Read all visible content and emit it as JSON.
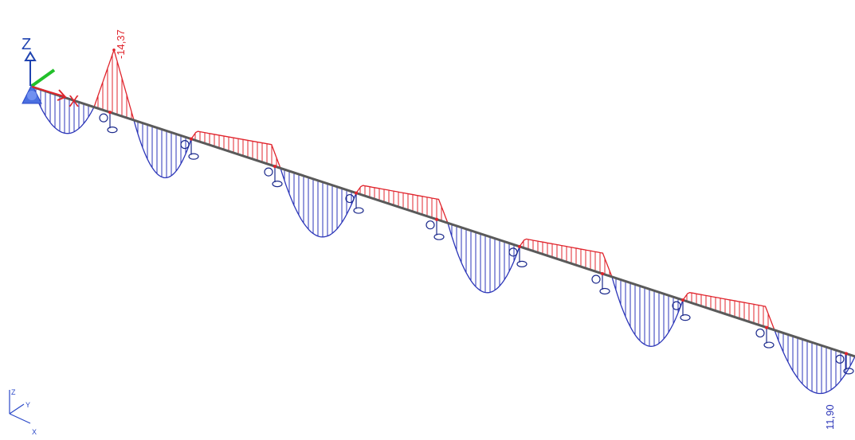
{
  "diagram": {
    "type": "beam-bending-moment",
    "colors": {
      "beam": "#5a5a5a",
      "negative": "#e0242c",
      "positive": "#2b35b8",
      "support": "#1c2a8c",
      "axis_x": "#e0242c",
      "axis_y": "#22c02a",
      "axis_z": "#1f43b0",
      "triad": "#2a48c8"
    },
    "labels": {
      "min_value": "-14,37",
      "max_value": "11,90"
    },
    "global_axes": {
      "x": "X",
      "z": "Z"
    },
    "view_triad": {
      "x": "X",
      "y": "Y",
      "z": "Z"
    },
    "icons": [
      "fixed-support-icon",
      "roller-support-icon"
    ]
  }
}
